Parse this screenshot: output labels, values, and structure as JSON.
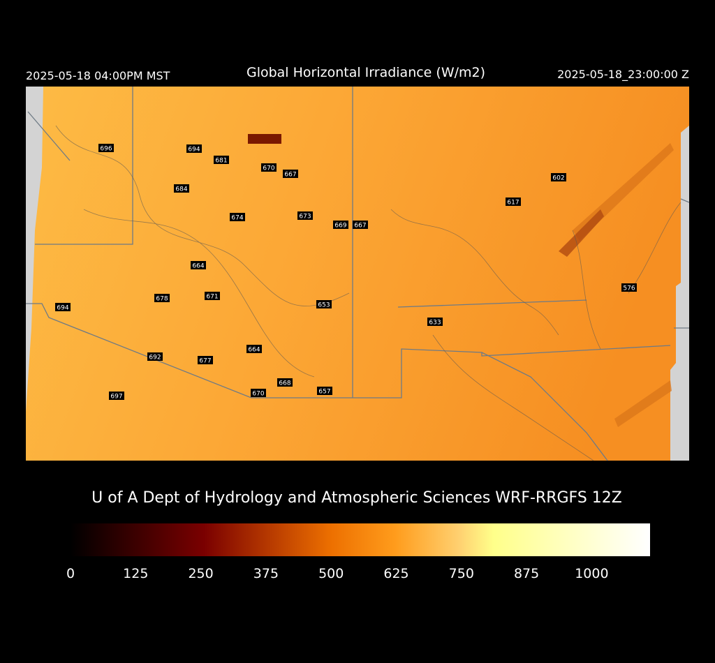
{
  "header": {
    "left": "2025-05-18 04:00PM MST",
    "title": "Global Horizontal Irradiance (W/m2)",
    "right": "2025-05-18_23:00:00 Z"
  },
  "stations": [
    696,
    694,
    681,
    670,
    667,
    684,
    674,
    673,
    669,
    667,
    602,
    617,
    664,
    678,
    671,
    653,
    694,
    633,
    576,
    664,
    692,
    677,
    668,
    670,
    657,
    697
  ],
  "credit": "U of A Dept of Hydrology and Atmospheric Sciences WRF-RRGFS 12Z",
  "colorbar": {
    "range": [
      0,
      1112
    ],
    "ticks": [
      0,
      125,
      250,
      375,
      500,
      625,
      750,
      875,
      1000
    ]
  }
}
